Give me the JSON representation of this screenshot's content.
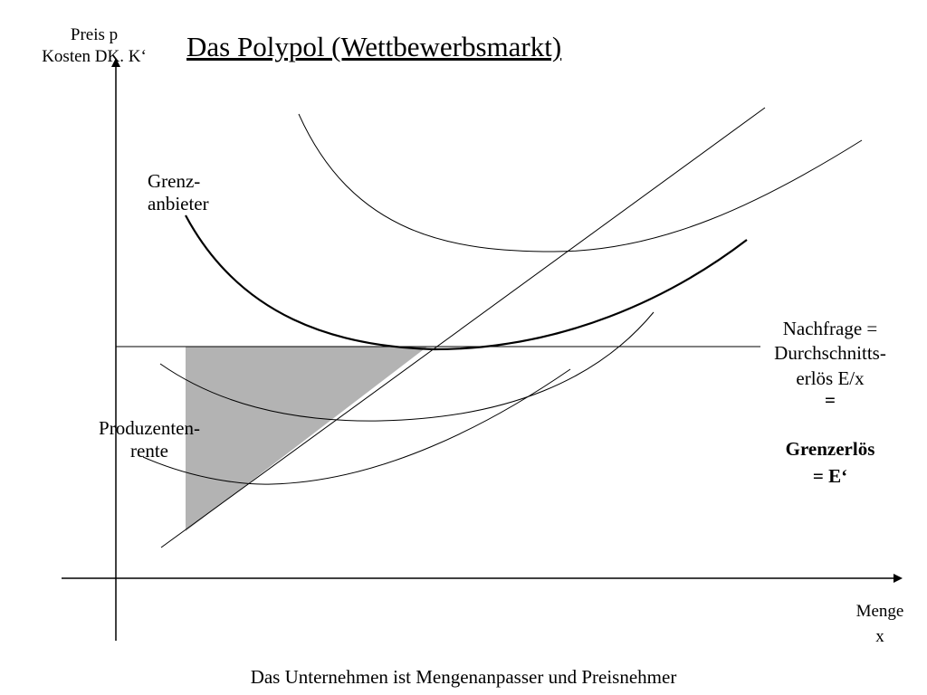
{
  "slide": {
    "title": "Das Polypol (Wettbewerbsmarkt)",
    "y_axis_label": [
      "Preis p",
      "Kosten DK. K‘"
    ],
    "x_axis_label": [
      "Menge",
      "x"
    ],
    "labels": {
      "grenzanbieter": [
        "Grenz-",
        "anbieter"
      ],
      "produzentenrente": [
        "Produzenten-",
        "rente"
      ],
      "nachfrage": [
        "Nachfrage =",
        "Durchschnitts-",
        "erlös E/x",
        "="
      ],
      "grenzerloes": [
        "Grenzerlös",
        "= E‘"
      ]
    },
    "footer": "Das Unternehmen ist Mengenanpasser und Preisnehmer"
  },
  "colors": {
    "line": "#000000",
    "shaded_area": "#b3b3b3",
    "background": "#ffffff"
  }
}
